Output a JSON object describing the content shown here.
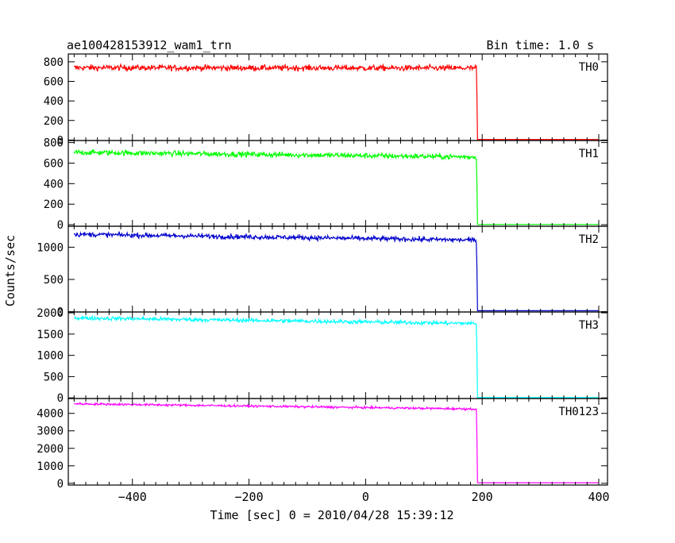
{
  "header": {
    "title": "ae100428153912_wam1_trn",
    "bin_time": "Bin time: 1.0 s"
  },
  "chart_data": {
    "type": "line",
    "title": "ae100428153912_wam1_trn",
    "subtitle": "Bin time: 1.0 s",
    "xlabel": "Time [sec] 0 = 2010/04/28 15:39:12",
    "ylabel": "Counts/sec",
    "xlim": [
      -510,
      415
    ],
    "x_ticks": [
      -400,
      -200,
      0,
      200,
      400
    ],
    "drop_time": 190,
    "panels": [
      {
        "name": "TH0",
        "color": "#ff0000",
        "ylim": [
          -5,
          880
        ],
        "y_ticks": [
          0,
          200,
          400,
          600,
          800
        ],
        "level_start": 740,
        "level_end": 735,
        "noise": 28,
        "after_value": 5
      },
      {
        "name": "TH1",
        "color": "#00ff00",
        "ylim": [
          -15,
          820
        ],
        "y_ticks": [
          0,
          200,
          400,
          600,
          800
        ],
        "level_start": 705,
        "level_end": 660,
        "noise": 25,
        "after_value": 3
      },
      {
        "name": "TH2",
        "color": "#0000cc",
        "ylim": [
          -5,
          1325
        ],
        "y_ticks": [
          0,
          500,
          1000
        ],
        "level_start": 1200,
        "level_end": 1110,
        "noise": 35,
        "after_value": 15
      },
      {
        "name": "TH3",
        "color": "#00ffff",
        "ylim": [
          -15,
          2020
        ],
        "y_ticks": [
          0,
          500,
          1000,
          1500,
          2000
        ],
        "level_start": 1880,
        "level_end": 1750,
        "noise": 45,
        "after_value": 8
      },
      {
        "name": "TH0123",
        "color": "#ff00ff",
        "ylim": [
          -100,
          4850
        ],
        "y_ticks": [
          0,
          1000,
          2000,
          3000,
          4000
        ],
        "level_start": 4550,
        "level_end": 4250,
        "noise": 60,
        "after_value": 30
      }
    ]
  }
}
